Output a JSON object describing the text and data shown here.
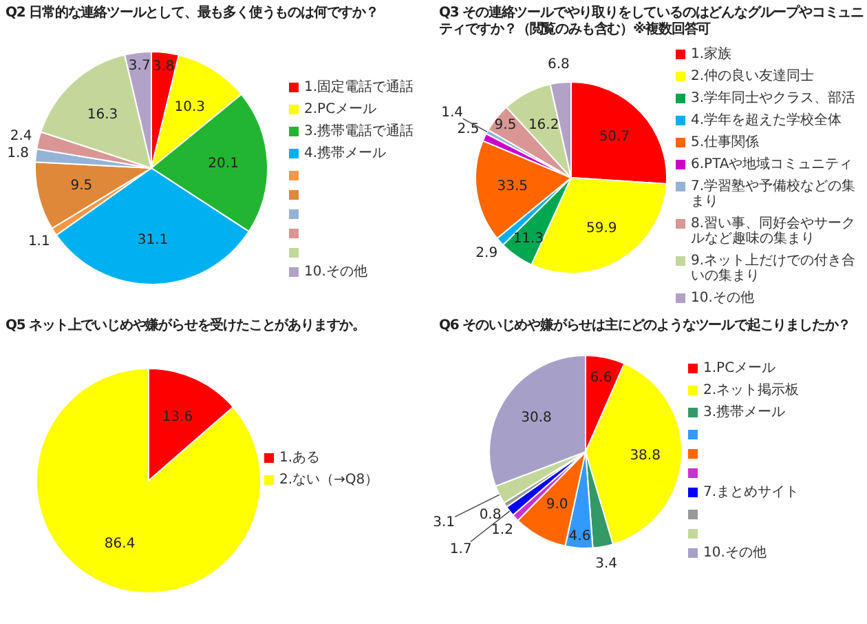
{
  "chart_data": [
    {
      "type": "pie",
      "title": "Q2 日常的な連絡ツールとして、最も多く使うものは何ですか？",
      "categories": [
        "1.固定電話で通話",
        "2.PCメール",
        "3.携帯電話で通話",
        "4.携帯メール",
        null,
        null,
        null,
        null,
        null,
        "10.その他"
      ],
      "values": [
        3.8,
        10.3,
        20.1,
        31.1,
        1.1,
        9.5,
        1.8,
        2.4,
        16.3,
        3.7
      ],
      "colors": [
        "#ff0000",
        "#ffff00",
        "#22b531",
        "#00b0f0",
        "#f79646",
        "#e0883a",
        "#95b3d7",
        "#d99694",
        "#c4d79b",
        "#b3a2c7"
      ],
      "data_labels": true,
      "legend": "right"
    },
    {
      "type": "pie",
      "title": "Q3 その連絡ツールでやり取りをしているのはどんなグループやコミュニティですか？（閲覧のみも含む）※複数回答可",
      "categories": [
        "1.家族",
        "2.仲の良い友達同士",
        "3.学年同士やクラス、部活",
        "4.学年を超えた学校全体",
        "5.仕事関係",
        "6.PTAや地域コミュニティ",
        "7.学習塾や予備校などの集まり",
        "8.習い事、同好会やサークルなど趣味の集まり",
        "9.ネット上だけでの付き合いの集まり",
        "10.その他"
      ],
      "values": [
        50.7,
        59.9,
        11.3,
        2.9,
        33.5,
        2.5,
        1.4,
        9.5,
        16.2,
        6.8
      ],
      "colors": [
        "#ff0000",
        "#ffff00",
        "#00a650",
        "#00b0f0",
        "#ff6600",
        "#cc00cc",
        "#95b3d7",
        "#d99694",
        "#c4d79b",
        "#b3a2c7"
      ],
      "data_labels": true,
      "legend": "right"
    },
    {
      "type": "pie",
      "title": "Q5 ネット上でいじめや嫌がらせを受けたことがありますか。",
      "categories": [
        "1.ある",
        "2.ない（→Q8）"
      ],
      "values": [
        13.6,
        86.4
      ],
      "colors": [
        "#ff0000",
        "#ffff00"
      ],
      "data_labels": true,
      "legend": "right"
    },
    {
      "type": "pie",
      "title": "Q6 そのいじめや嫌がらせは主にどのようなツールで起こりましたか？",
      "categories": [
        "1.PCメール",
        "2.ネット掲示板",
        "3.携帯メール",
        null,
        null,
        null,
        "7.まとめサイト",
        null,
        null,
        "10.その他"
      ],
      "values": [
        6.6,
        38.8,
        3.4,
        4.6,
        9.0,
        1.2,
        1.7,
        0.8,
        3.1,
        30.8
      ],
      "value_labels": [
        "6.6",
        "38.8",
        "3.4",
        "4.6",
        "9.0",
        "1.2",
        "1.7",
        "0.8",
        "3.1",
        "30.8"
      ],
      "colors": [
        "#ff0000",
        "#ffff00",
        "#339966",
        "#3399ff",
        "#ff6600",
        "#cc33cc",
        "#0000ff",
        "#999999",
        "#c4d79b",
        "#a6a0c8"
      ],
      "legend": "right"
    }
  ]
}
